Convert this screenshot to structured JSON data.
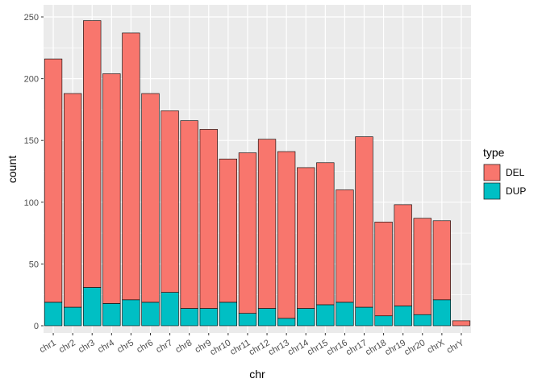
{
  "chart_data": {
    "type": "bar",
    "stacked": true,
    "categories": [
      "chr1",
      "chr2",
      "chr3",
      "chr4",
      "chr5",
      "chr6",
      "chr7",
      "chr8",
      "chr9",
      "chr10",
      "chr11",
      "chr12",
      "chr13",
      "chr14",
      "chr15",
      "chr16",
      "chr17",
      "chr18",
      "chr19",
      "chr20",
      "chrX",
      "chrY"
    ],
    "series": [
      {
        "name": "DEL",
        "color": "#F8766D",
        "values": [
          197,
          173,
          216,
          186,
          216,
          169,
          147,
          152,
          145,
          116,
          130,
          137,
          135,
          114,
          115,
          91,
          138,
          76,
          82,
          78,
          64,
          4
        ]
      },
      {
        "name": "DUP",
        "color": "#00BFC4",
        "values": [
          19,
          15,
          31,
          18,
          21,
          19,
          27,
          14,
          14,
          19,
          10,
          14,
          6,
          14,
          17,
          19,
          15,
          8,
          16,
          9,
          21,
          0
        ]
      }
    ],
    "xlabel": "chr",
    "ylabel": "count",
    "ylim": [
      0,
      262
    ],
    "yticks": [
      0,
      50,
      100,
      150,
      200,
      250
    ],
    "grid": true,
    "legend": {
      "title": "type",
      "position": "right",
      "labels": [
        "DEL",
        "DUP"
      ]
    }
  }
}
